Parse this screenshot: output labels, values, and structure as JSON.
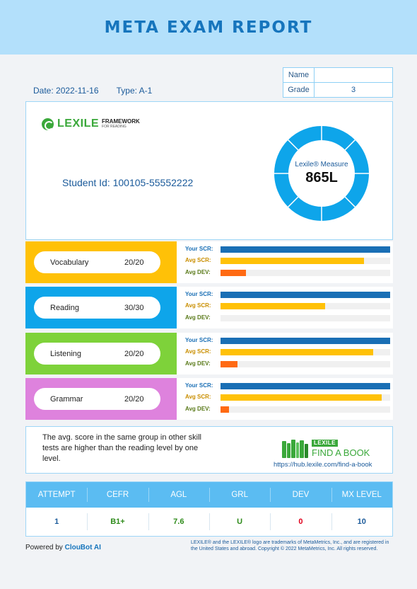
{
  "header": {
    "title": "META EXAM REPORT"
  },
  "meta": {
    "date": "Date: 2022-11-16",
    "type": "Type: A-1"
  },
  "student_info": {
    "name_label": "Name",
    "name_value": "",
    "grade_label": "Grade",
    "grade_value": "3"
  },
  "lexile": {
    "logo_word": "LEXILE",
    "logo_framework": "FRAMEWORK",
    "logo_for_reading": "FOR READING",
    "student_id": "Student Id: 100105-55552222",
    "measure_label": "Lexile® Measure",
    "measure_value": "865L"
  },
  "bar_labels": {
    "scr": "Your SCR:",
    "avg": "Avg SCR:",
    "dev": "Avg DEV:"
  },
  "skills": [
    {
      "name": "Vocabulary",
      "score": "20/20",
      "tile_color": "#ffc107",
      "your_scr": 1.0,
      "avg_scr": 0.845,
      "avg_dev": 0.15
    },
    {
      "name": "Reading",
      "score": "30/30",
      "tile_color": "#0ea5ea",
      "your_scr": 1.0,
      "avg_scr": 0.615,
      "avg_dev": 0.0
    },
    {
      "name": "Listening",
      "score": "20/20",
      "tile_color": "#7ed23a",
      "your_scr": 1.0,
      "avg_scr": 0.9,
      "avg_dev": 0.1
    },
    {
      "name": "Grammar",
      "score": "20/20",
      "tile_color": "#de82dd",
      "your_scr": 1.0,
      "avg_scr": 0.95,
      "avg_dev": 0.05
    }
  ],
  "comment": {
    "text": "The avg. score in the same group in other skill tests are higher than the reading level by one level.",
    "fab_lexile": "LEXILE",
    "fab_title": "FIND A BOOK",
    "fab_url": "https://hub.lexile.com/find-a-book"
  },
  "results": {
    "headers": [
      "ATTEMPT",
      "CEFR",
      "AGL",
      "GRL",
      "DEV",
      "MX LEVEL"
    ],
    "values": [
      "1",
      "B1+",
      "7.6",
      "U",
      "0",
      "10"
    ],
    "colors": [
      "#1a5a9a",
      "#2e8b1a",
      "#2e8b1a",
      "#2e8b1a",
      "#e0001b",
      "#1a5a9a"
    ]
  },
  "footer": {
    "powered_prefix": "Powered by ",
    "powered_brand": "ClouBot AI",
    "trademark": "LEXILE® and the LEXILE® logo are trademarks of MetaMetrics, Inc., and are registered in the United States and abroad. Copyright © 2022 MetaMetrics, Inc. All rights reserved."
  }
}
